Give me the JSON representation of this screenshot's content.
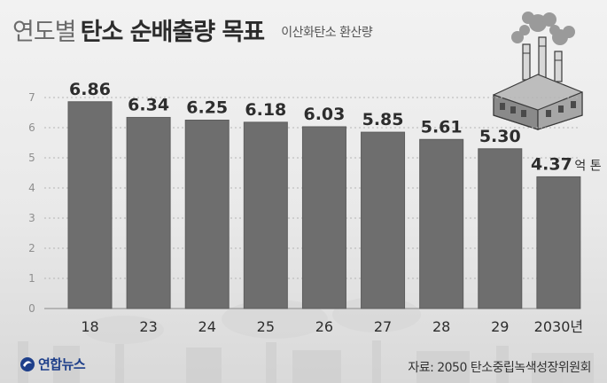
{
  "header": {
    "title_light": "연도별",
    "title_bold": "탄소 순배출량 목표",
    "subtitle": "이산화탄소 환산량"
  },
  "source": "자료: 2050 탄소중립녹색성장위원회",
  "logo": {
    "text": "연합뉴스"
  },
  "colors": {
    "bar": "#6e6e6e",
    "bar_edge": "#5d5d5d",
    "grid": "#b5b5b5",
    "text": "#2d2d2d",
    "tick": "#8e8e8e"
  },
  "chart_data": {
    "type": "bar",
    "categories": [
      "18",
      "23",
      "24",
      "25",
      "26",
      "27",
      "28",
      "29",
      "2030년"
    ],
    "values": [
      6.86,
      6.34,
      6.25,
      6.18,
      6.03,
      5.85,
      5.61,
      5.3,
      4.37
    ],
    "value_labels": [
      "6.86",
      "6.34",
      "6.25",
      "6.18",
      "6.03",
      "5.85",
      "5.61",
      "5.30",
      "4.37"
    ],
    "unit_label": "억 톤",
    "yticks": [
      "0",
      "1",
      "2",
      "3",
      "4",
      "5",
      "6",
      "7"
    ],
    "ylim": [
      0,
      7
    ],
    "grid": true,
    "title": "연도별 탄소 순배출량 목표",
    "xlabel": "",
    "ylabel": ""
  }
}
